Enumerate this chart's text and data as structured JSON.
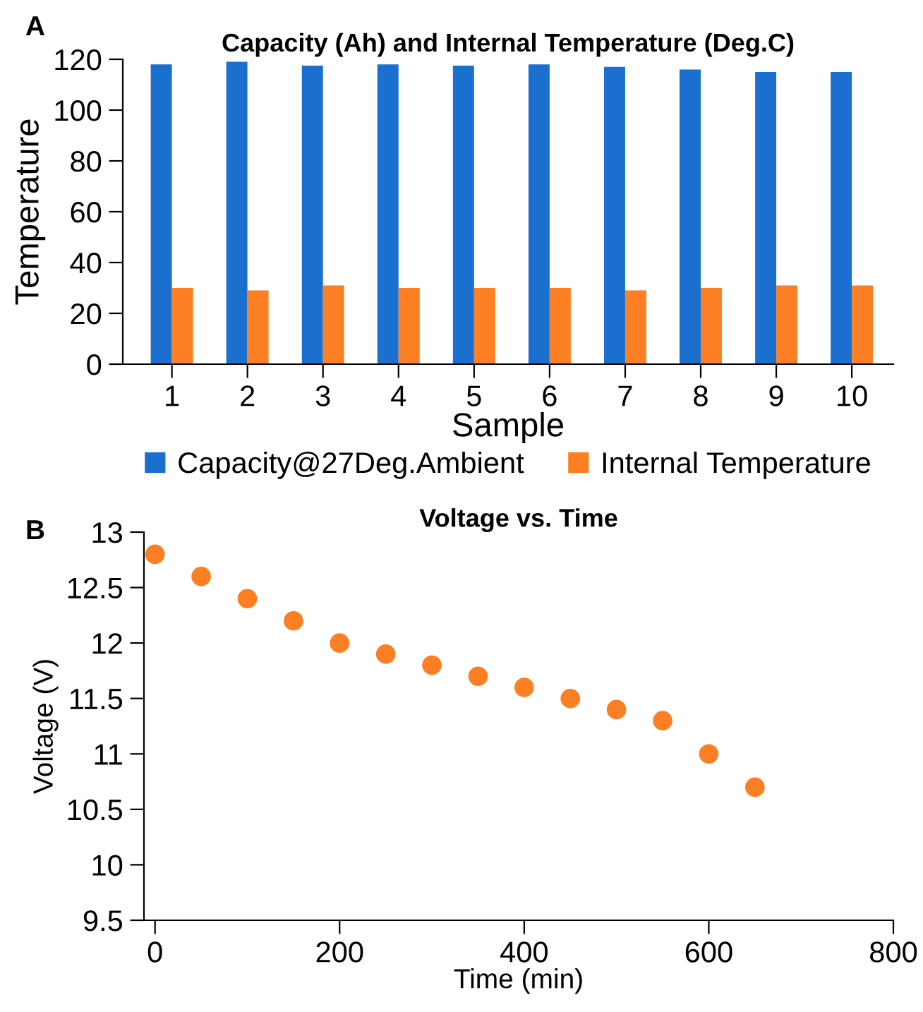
{
  "chart_data": [
    {
      "type": "bar",
      "title": "Capacity (Ah) and Internal Temperature (Deg.C)",
      "xlabel": "Sample",
      "ylabel": "Temperature",
      "annotations": [
        "A"
      ],
      "categories": [
        "1",
        "2",
        "3",
        "4",
        "5",
        "6",
        "7",
        "8",
        "9",
        "10"
      ],
      "series": [
        {
          "name": "Capacity@27Deg.Ambient",
          "color": "#1a6fcf",
          "values": [
            118,
            119,
            117.5,
            118,
            117.5,
            118,
            117,
            116,
            115,
            115
          ]
        },
        {
          "name": "Internal Temperature",
          "color": "#fd7f23",
          "values": [
            30,
            29,
            31,
            30,
            30,
            30,
            29,
            30,
            31,
            31
          ]
        }
      ],
      "ylim": [
        0,
        120
      ],
      "yticks": [
        0,
        20,
        40,
        60,
        80,
        100,
        120
      ],
      "grid": false,
      "legend": "bottom"
    },
    {
      "type": "scatter",
      "title": "Voltage vs. Time",
      "xlabel": "Time (min)",
      "ylabel": "Voltage (V)",
      "annotations": [
        "B"
      ],
      "x": [
        0,
        50,
        100,
        150,
        200,
        250,
        300,
        350,
        400,
        450,
        500,
        550,
        600,
        650
      ],
      "series": [
        {
          "color": "#fd7f23",
          "values": [
            12.8,
            12.6,
            12.4,
            12.2,
            12.0,
            11.9,
            11.8,
            11.7,
            11.6,
            11.5,
            11.4,
            11.3,
            11.0,
            10.7
          ]
        }
      ],
      "xlim": [
        -12,
        800
      ],
      "xticks": [
        0,
        200,
        400,
        600,
        800
      ],
      "ylim": [
        9.5,
        13
      ],
      "yticks": [
        9.5,
        10,
        10.5,
        11,
        11.5,
        12,
        12.5,
        13
      ],
      "grid": false,
      "legend": false,
      "marker": "circle"
    }
  ]
}
